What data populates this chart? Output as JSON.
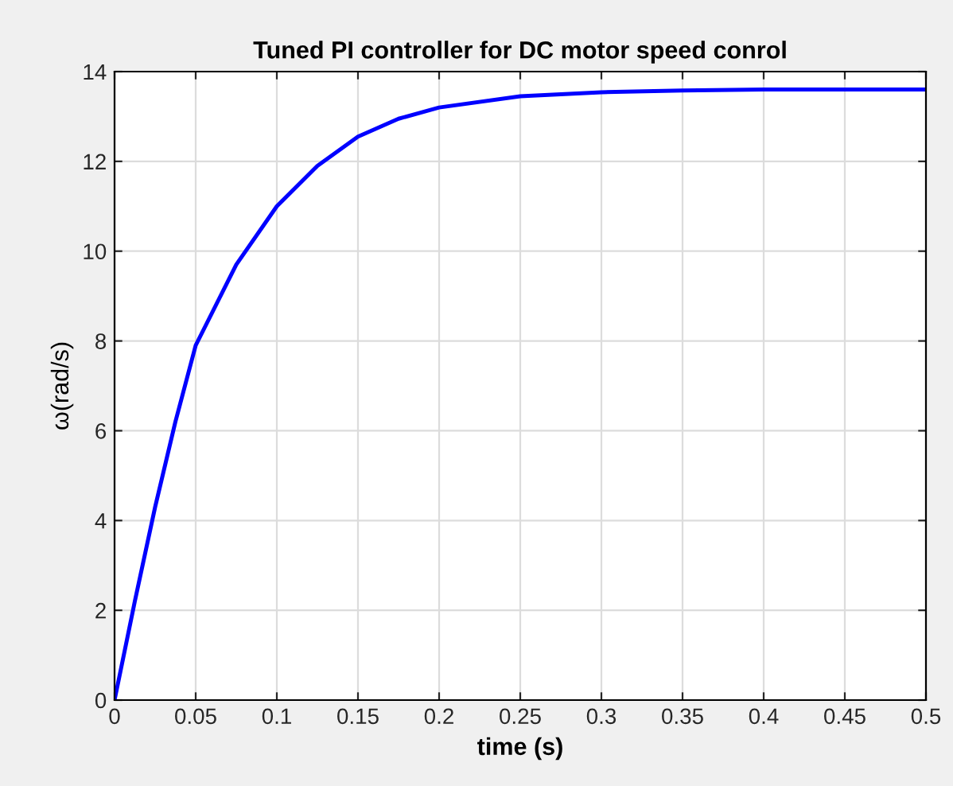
{
  "chart_data": {
    "type": "line",
    "title": "Tuned PI controller for DC motor speed conrol",
    "xlabel": "time (s)",
    "ylabel": "ω(rad/s)",
    "x": [
      0,
      0.0125,
      0.025,
      0.0375,
      0.05,
      0.075,
      0.1,
      0.125,
      0.15,
      0.175,
      0.2,
      0.25,
      0.3,
      0.35,
      0.4,
      0.45,
      0.5
    ],
    "series": [
      {
        "color": "#0000ff",
        "values": [
          0,
          2.2,
          4.3,
          6.2,
          7.9,
          9.7,
          11.0,
          11.9,
          12.55,
          12.95,
          13.2,
          13.45,
          13.54,
          13.58,
          13.6,
          13.6,
          13.6
        ]
      }
    ],
    "xlim": [
      0,
      0.5
    ],
    "ylim": [
      0,
      14
    ],
    "xticks": [
      0,
      0.05,
      0.1,
      0.15,
      0.2,
      0.25,
      0.3,
      0.35,
      0.4,
      0.45,
      0.5
    ],
    "yticks": [
      0,
      2,
      4,
      6,
      8,
      10,
      12,
      14
    ],
    "grid": true,
    "line_style": "solid"
  }
}
